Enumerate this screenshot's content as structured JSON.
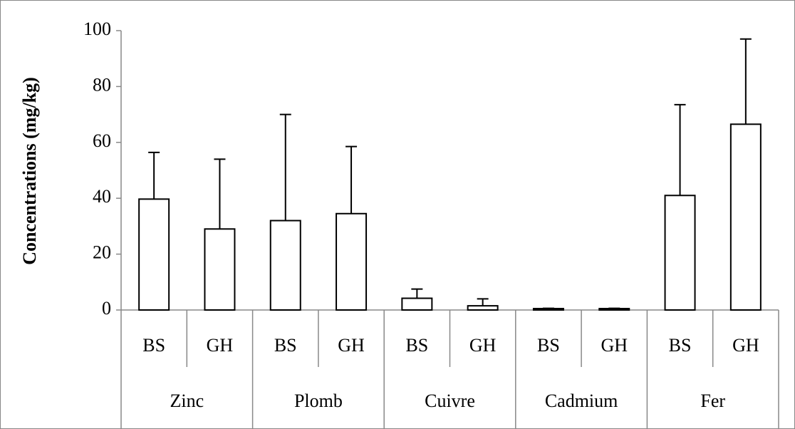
{
  "chart_data": {
    "type": "bar",
    "ylabel": "Concentrations (mg/kg)",
    "groups": [
      "Zinc",
      "Plomb",
      "Cuivre",
      "Cadmium",
      "Fer"
    ],
    "categories": [
      "BS",
      "GH",
      "BS",
      "GH",
      "BS",
      "GH",
      "BS",
      "GH",
      "BS",
      "GH"
    ],
    "values": [
      39.7,
      29,
      32,
      34.5,
      4.2,
      1.5,
      0.5,
      0.5,
      41,
      66.5
    ],
    "errors": [
      16.7,
      25,
      38,
      24,
      3.3,
      2.5,
      0.1,
      0.1,
      32.5,
      30.5
    ],
    "color": "#ffffff",
    "ylim": [
      0,
      100
    ],
    "yticks": [
      0,
      20,
      40,
      60,
      80,
      100
    ],
    "grid": false
  }
}
